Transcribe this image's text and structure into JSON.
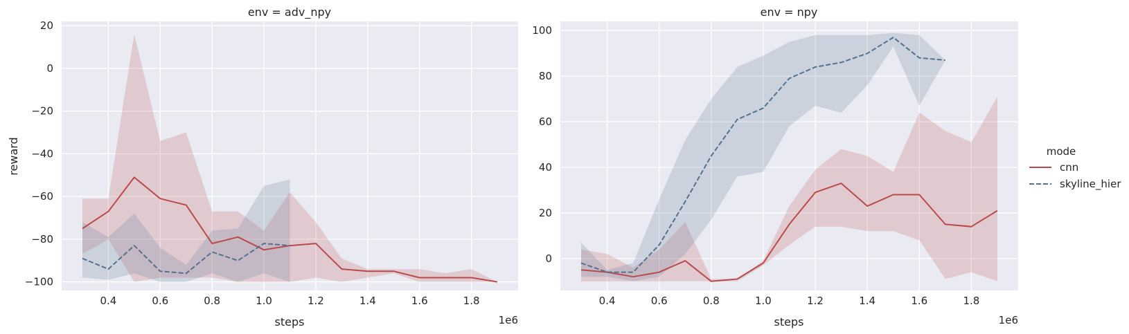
{
  "chart_data": {
    "type": "line",
    "x_label": "steps",
    "x_scale_label": "1e6",
    "legend": {
      "title": "mode",
      "entries": [
        {
          "name": "cnn",
          "color": "#b94a4a",
          "dash": "solid"
        },
        {
          "name": "skyline_hier",
          "color": "#52718f",
          "dash": "dashed"
        }
      ],
      "placement": "right"
    },
    "panels": [
      {
        "title": "env = adv_npy",
        "ylabel": "reward",
        "xlim": [
          0.22,
          1.98
        ],
        "ylim": [
          -104,
          22
        ],
        "xticks": [
          0.4,
          0.6,
          0.8,
          1.0,
          1.2,
          1.4,
          1.6,
          1.8
        ],
        "xtick_labels": [
          "0.4",
          "0.6",
          "0.8",
          "1.0",
          "1.2",
          "1.4",
          "1.6",
          "1.8"
        ],
        "yticks": [
          -100,
          -80,
          -60,
          -40,
          -20,
          0,
          20
        ],
        "ytick_labels": [
          "−100",
          "−80",
          "−60",
          "−40",
          "−20",
          "0",
          "20"
        ],
        "series": [
          {
            "name": "cnn",
            "x": [
              0.3,
              0.4,
              0.5,
              0.6,
              0.7,
              0.8,
              0.9,
              1.0,
              1.1,
              1.2,
              1.3,
              1.4,
              1.5,
              1.6,
              1.7,
              1.8,
              1.9
            ],
            "y": [
              -75,
              -67,
              -51,
              -61,
              -64,
              -82,
              -79,
              -85,
              -83,
              -82,
              -94,
              -95,
              -95,
              -98,
              -98,
              -98,
              -100
            ],
            "lower": [
              -87,
              -80,
              -100,
              -98,
              -98,
              -98,
              -100,
              -100,
              -100,
              -98,
              -100,
              -98,
              -96,
              -100,
              -100,
              -100,
              -100
            ],
            "upper": [
              -61,
              -61,
              16,
              -34,
              -30,
              -67,
              -67,
              -76,
              -58,
              -72,
              -89,
              -94,
              -94,
              -94,
              -96,
              -94,
              -100
            ]
          },
          {
            "name": "skyline_hier",
            "x": [
              0.3,
              0.4,
              0.5,
              0.6,
              0.7,
              0.8,
              0.9,
              1.0,
              1.1
            ],
            "y": [
              -89,
              -94,
              -83,
              -95,
              -96,
              -86,
              -90,
              -82,
              -83
            ],
            "lower": [
              -98,
              -99,
              -96,
              -100,
              -100,
              -96,
              -100,
              -96,
              -100
            ],
            "upper": [
              -72,
              -79,
              -68,
              -84,
              -92,
              -76,
              -75,
              -55,
              -52
            ]
          }
        ]
      },
      {
        "title": "env = npy",
        "ylabel": "",
        "xlim": [
          0.22,
          1.98
        ],
        "ylim": [
          -14,
          104
        ],
        "xticks": [
          0.4,
          0.6,
          0.8,
          1.0,
          1.2,
          1.4,
          1.6,
          1.8
        ],
        "xtick_labels": [
          "0.4",
          "0.6",
          "0.8",
          "1.0",
          "1.2",
          "1.4",
          "1.6",
          "1.8"
        ],
        "yticks": [
          0,
          20,
          40,
          60,
          80,
          100
        ],
        "ytick_labels": [
          "0",
          "20",
          "40",
          "60",
          "80",
          "100"
        ],
        "series": [
          {
            "name": "cnn",
            "x": [
              0.3,
              0.4,
              0.5,
              0.6,
              0.7,
              0.8,
              0.9,
              1.0,
              1.1,
              1.2,
              1.3,
              1.4,
              1.5,
              1.6,
              1.7,
              1.8,
              1.9
            ],
            "y": [
              -5,
              -6,
              -8,
              -6,
              -1,
              -10,
              -9,
              -2,
              15,
              29,
              33,
              23,
              28,
              28,
              15,
              14,
              21
            ],
            "lower": [
              -10,
              -10,
              -10,
              -10,
              -10,
              -10,
              -10,
              -3,
              6,
              14,
              14,
              12,
              12,
              8,
              -9,
              -6,
              -10
            ],
            "upper": [
              4,
              2,
              -4,
              4,
              16,
              -9,
              -9,
              -1,
              23,
              39,
              48,
              45,
              38,
              64,
              56,
              51,
              71
            ]
          },
          {
            "name": "skyline_hier",
            "x": [
              0.3,
              0.4,
              0.5,
              0.6,
              0.7,
              0.8,
              0.9,
              1.0,
              1.1,
              1.2,
              1.3,
              1.4,
              1.5,
              1.6,
              1.7
            ],
            "y": [
              -2,
              -6,
              -6,
              6,
              25,
              45,
              61,
              66,
              79,
              84,
              86,
              90,
              97,
              88,
              87
            ],
            "lower": [
              -8,
              -8,
              -10,
              -8,
              2,
              17,
              36,
              38,
              58,
              67,
              64,
              76,
              93,
              67,
              87
            ],
            "upper": [
              7,
              -5,
              -2,
              26,
              52,
              70,
              84,
              89,
              95,
              98,
              98,
              98,
              99,
              98,
              87
            ]
          }
        ]
      }
    ]
  }
}
